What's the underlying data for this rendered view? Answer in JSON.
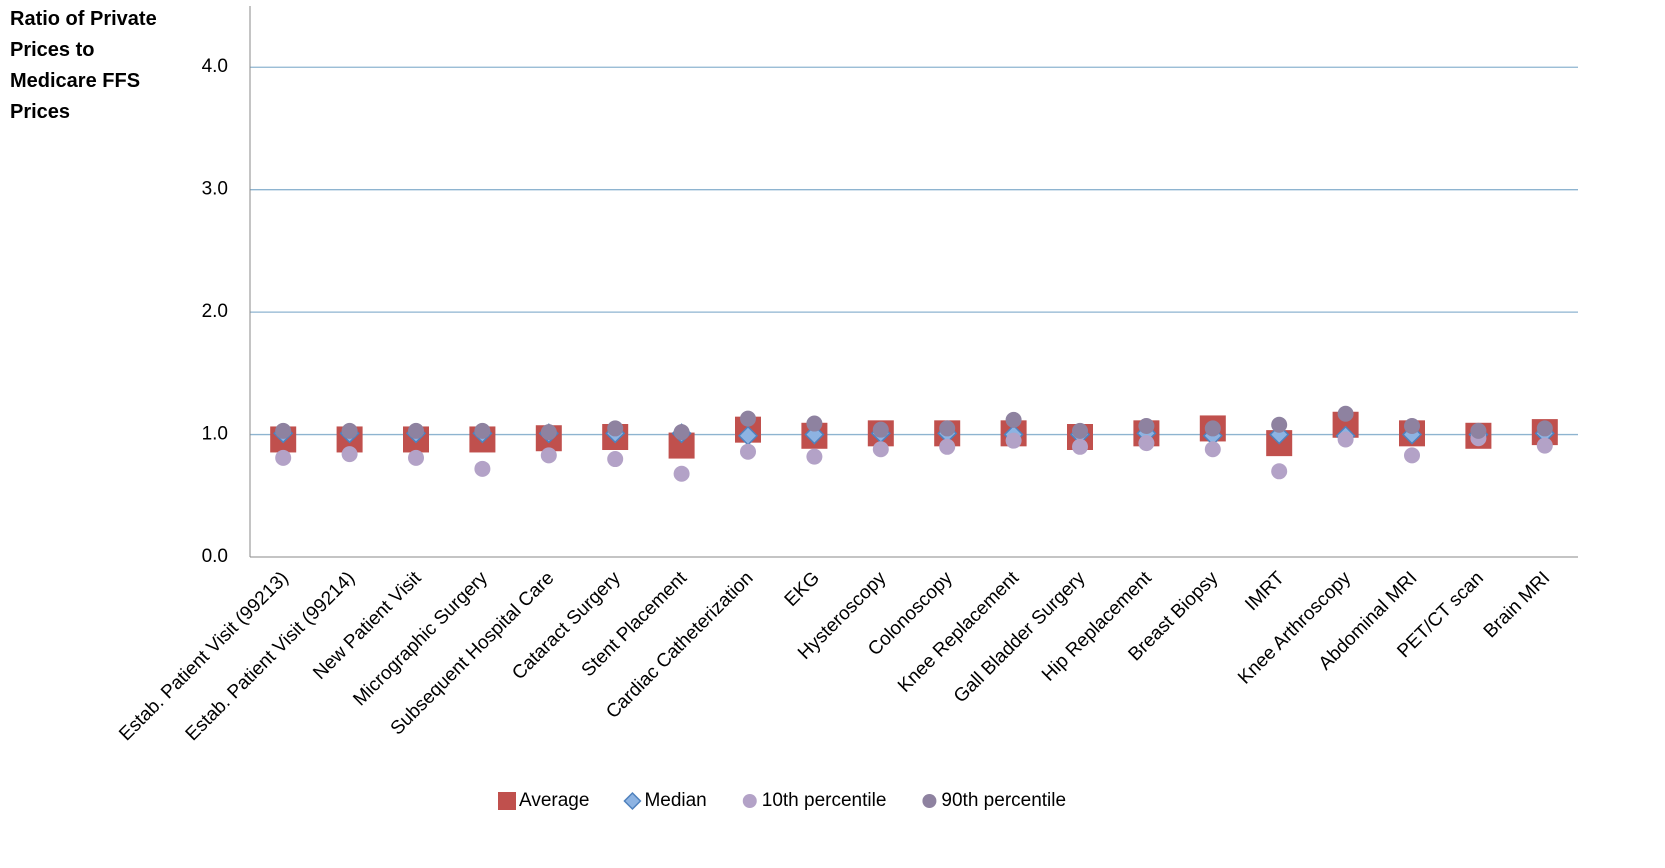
{
  "chart_data": {
    "type": "scatter",
    "y_label": "Ratio of Private Prices to Medicare FFS Prices",
    "categories": [
      "Estab. Patient Visit (99213)",
      "Estab. Patient Visit (99214)",
      "New Patient Visit",
      "Micrographic Surgery",
      "Subsequent Hospital Care",
      "Cataract Surgery",
      "Stent Placement",
      "Cardiac Catheterization",
      "EKG",
      "Hysteroscopy",
      "Colonoscopy",
      "Knee Replacement",
      "Gall Bladder Surgery",
      "Hip Replacement",
      "Breast Biopsy",
      "IMRT",
      "Knee Arthroscopy",
      "Abdominal MRI",
      "PET/CT scan",
      "Brain MRI"
    ],
    "series": [
      {
        "name": "Average",
        "color": "#c0504d",
        "marker": "square",
        "values": [
          0.96,
          0.96,
          0.96,
          0.96,
          0.97,
          0.98,
          0.91,
          1.04,
          0.99,
          1.01,
          1.01,
          1.01,
          0.98,
          1.01,
          1.05,
          0.93,
          1.08,
          1.01,
          0.99,
          1.02
        ]
      },
      {
        "name": "Median",
        "color": "#8db3e2",
        "marker": "diamond",
        "values": [
          1.01,
          1.01,
          1.01,
          1.01,
          1.01,
          1.01,
          1.01,
          0.99,
          1.0,
          1.01,
          1.01,
          1.0,
          1.0,
          1.01,
          0.99,
          1.0,
          0.99,
          1.0,
          1.0,
          1.01
        ]
      },
      {
        "name": "10th percentile",
        "color": "#b3a2c7",
        "marker": "circle",
        "values": [
          0.81,
          0.84,
          0.81,
          0.72,
          0.83,
          0.8,
          0.68,
          0.86,
          0.82,
          0.88,
          0.9,
          0.95,
          0.9,
          0.93,
          0.88,
          0.7,
          0.96,
          0.83,
          0.97,
          0.91
        ]
      },
      {
        "name": "90th percentile",
        "color": "#8e82a0",
        "marker": "circle",
        "values": [
          1.03,
          1.03,
          1.03,
          1.03,
          1.02,
          1.05,
          1.02,
          1.13,
          1.09,
          1.04,
          1.05,
          1.12,
          1.03,
          1.07,
          1.05,
          1.08,
          1.17,
          1.07,
          1.03,
          1.05
        ]
      }
    ],
    "ylim": [
      0,
      4.5
    ],
    "yticks": [
      {
        "value": 0,
        "label": "0.0"
      },
      {
        "value": 1,
        "label": "1.0"
      },
      {
        "value": 2,
        "label": "2.0"
      },
      {
        "value": 3,
        "label": "3.0"
      },
      {
        "value": 4,
        "label": "4.0"
      }
    ],
    "grid": true,
    "legend": "bottom"
  }
}
